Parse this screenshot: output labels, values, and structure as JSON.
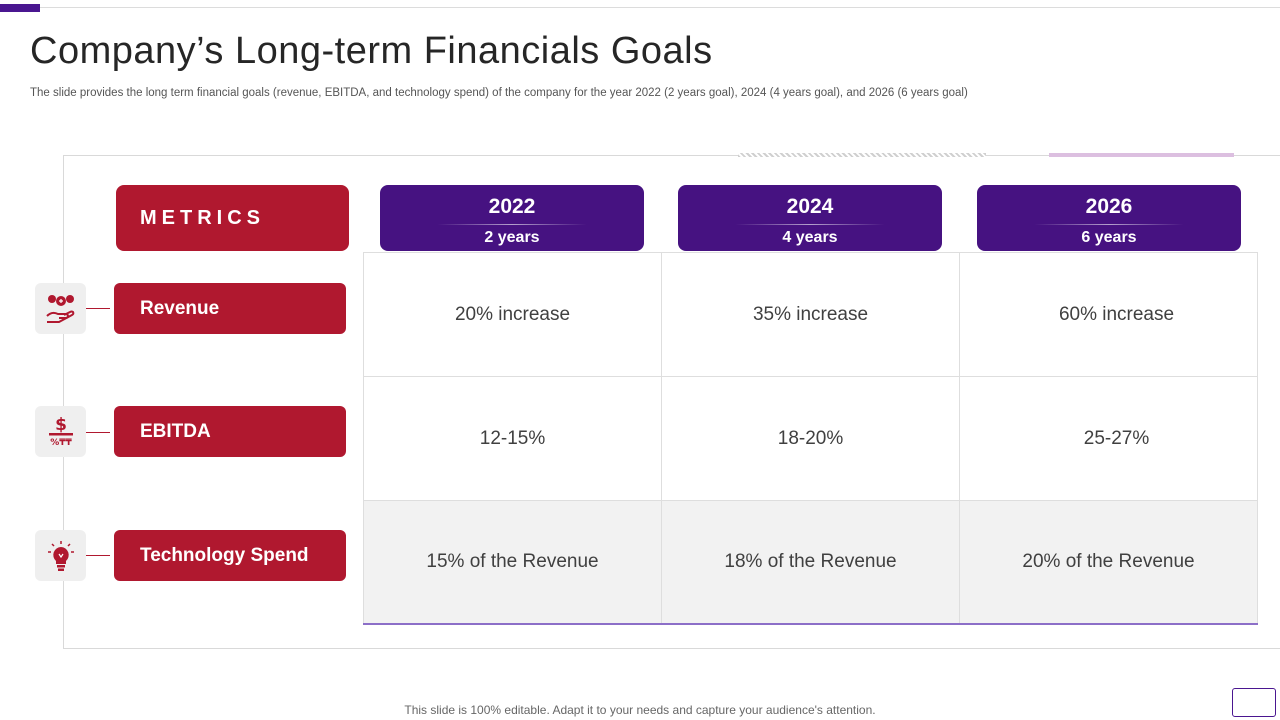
{
  "slide": {
    "title": "Company’s Long-term Financials Goals",
    "subtitle": "The slide provides the long term financial goals (revenue, EBITDA, and technology spend) of the company for the year 2022 (2 years goal), 2024 (4 years goal), and 2026 (6 years goal)",
    "footer": "This slide is 100% editable. Adapt it to your needs and capture your audience's attention."
  },
  "table": {
    "metrics_header": "METRICS",
    "columns": [
      {
        "year": "2022",
        "duration": "2 years"
      },
      {
        "year": "2024",
        "duration": "4 years"
      },
      {
        "year": "2026",
        "duration": "6 years"
      }
    ],
    "rows": [
      {
        "label": "Revenue",
        "icon": "money-bags-hand-icon",
        "values": [
          "20% increase",
          "35% increase",
          "60% increase"
        ]
      },
      {
        "label": "EBITDA",
        "icon": "dollar-percent-icon",
        "values": [
          "12-15%",
          "18-20%",
          "25-27%"
        ]
      },
      {
        "label": "Technology Spend",
        "icon": "lightbulb-icon",
        "values": [
          "15% of the Revenue",
          "18% of the Revenue",
          "20% of the Revenue"
        ]
      }
    ]
  },
  "colors": {
    "metric_red": "#b0182f",
    "year_purple": "#461281",
    "accent_lilac": "#dcbfe0",
    "text_dark": "#262626"
  },
  "dollar_glyph": "$",
  "ebitda_icon_caption": "%₸₸"
}
